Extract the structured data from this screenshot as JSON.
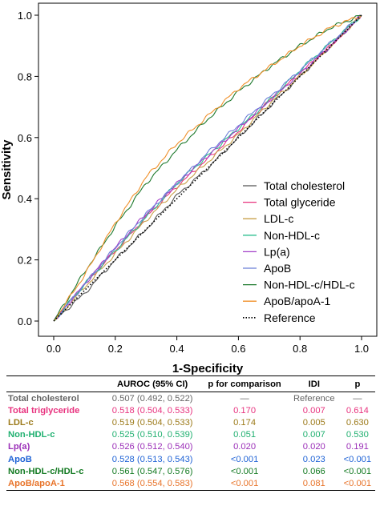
{
  "chart_data": {
    "type": "line",
    "xlabel": "1-Specificity",
    "ylabel": "Sensitivity",
    "xlim": [
      0,
      1
    ],
    "ylim": [
      0,
      1
    ],
    "xticks": [
      "0.0",
      "0.2",
      "0.4",
      "0.6",
      "0.8",
      "1.0"
    ],
    "yticks": [
      "0.0",
      "0.2",
      "0.4",
      "0.6",
      "0.8",
      "1.0"
    ],
    "grid": false,
    "legend_position": "bottom-right",
    "series": [
      {
        "name": "Total cholesterol",
        "color": "#555555",
        "dash": "solid",
        "x": [
          0,
          0.1,
          0.2,
          0.3,
          0.4,
          0.5,
          0.6,
          0.7,
          0.8,
          0.9,
          1
        ],
        "y": [
          0,
          0.09,
          0.2,
          0.3,
          0.41,
          0.5,
          0.6,
          0.7,
          0.8,
          0.9,
          1
        ]
      },
      {
        "name": "Total glyceride",
        "color": "#e8337f",
        "dash": "solid",
        "x": [
          0,
          0.1,
          0.2,
          0.3,
          0.4,
          0.5,
          0.6,
          0.7,
          0.8,
          0.9,
          1
        ],
        "y": [
          0,
          0.12,
          0.23,
          0.34,
          0.44,
          0.53,
          0.62,
          0.72,
          0.81,
          0.9,
          1
        ]
      },
      {
        "name": "LDL-c",
        "color": "#c8a04a",
        "dash": "solid",
        "x": [
          0,
          0.1,
          0.2,
          0.3,
          0.4,
          0.5,
          0.6,
          0.7,
          0.8,
          0.9,
          1
        ],
        "y": [
          0,
          0.11,
          0.22,
          0.33,
          0.43,
          0.52,
          0.61,
          0.71,
          0.8,
          0.9,
          1
        ]
      },
      {
        "name": "Non-HDL-c",
        "color": "#2bbf8f",
        "dash": "solid",
        "x": [
          0,
          0.1,
          0.2,
          0.3,
          0.4,
          0.5,
          0.6,
          0.7,
          0.8,
          0.9,
          1
        ],
        "y": [
          0,
          0.12,
          0.23,
          0.34,
          0.45,
          0.54,
          0.63,
          0.72,
          0.82,
          0.91,
          1
        ]
      },
      {
        "name": "Lp(a)",
        "color": "#a23fc8",
        "dash": "solid",
        "x": [
          0,
          0.1,
          0.2,
          0.3,
          0.4,
          0.5,
          0.6,
          0.7,
          0.8,
          0.9,
          1
        ],
        "y": [
          0,
          0.12,
          0.24,
          0.35,
          0.45,
          0.54,
          0.63,
          0.72,
          0.81,
          0.9,
          1
        ]
      },
      {
        "name": "ApoB",
        "color": "#6b7fd8",
        "dash": "solid",
        "x": [
          0,
          0.1,
          0.2,
          0.3,
          0.4,
          0.5,
          0.6,
          0.7,
          0.8,
          0.9,
          1
        ],
        "y": [
          0,
          0.12,
          0.24,
          0.35,
          0.45,
          0.55,
          0.64,
          0.73,
          0.82,
          0.91,
          1
        ]
      },
      {
        "name": "Non-HDL-c/HDL-c",
        "color": "#1f7a2e",
        "dash": "solid",
        "x": [
          0,
          0.1,
          0.2,
          0.3,
          0.4,
          0.5,
          0.6,
          0.7,
          0.8,
          0.9,
          1
        ],
        "y": [
          0,
          0.16,
          0.31,
          0.45,
          0.56,
          0.66,
          0.75,
          0.83,
          0.9,
          0.96,
          1
        ]
      },
      {
        "name": "ApoB/apoA-1",
        "color": "#f0902a",
        "dash": "solid",
        "x": [
          0,
          0.1,
          0.2,
          0.3,
          0.4,
          0.5,
          0.6,
          0.7,
          0.8,
          0.9,
          1
        ],
        "y": [
          0,
          0.15,
          0.32,
          0.47,
          0.58,
          0.67,
          0.76,
          0.83,
          0.9,
          0.96,
          1
        ]
      },
      {
        "name": "Reference",
        "color": "#000000",
        "dash": "dotted",
        "x": [
          0,
          1
        ],
        "y": [
          0,
          1
        ]
      }
    ]
  },
  "table": {
    "headers": [
      "",
      "AUROC (95% CI)",
      "p for comparison",
      "IDI",
      "p"
    ],
    "rows": [
      {
        "label": "Total cholesterol",
        "color": "#666666",
        "cells": [
          "0.507 (0.492, 0.522)",
          "—",
          "Reference",
          "—"
        ]
      },
      {
        "label": "Total triglyceride",
        "color": "#e8337f",
        "cells": [
          "0.518 (0.504, 0.533)",
          "0.170",
          "0.007",
          "0.614"
        ]
      },
      {
        "label": "LDL-c",
        "color": "#9c7a1a",
        "cells": [
          "0.519 (0.504, 0.533)",
          "0.174",
          "0.005",
          "0.630"
        ]
      },
      {
        "label": "Non-HDL-c",
        "color": "#20b070",
        "cells": [
          "0.525 (0.510, 0.539)",
          "0.051",
          "0.007",
          "0.530"
        ]
      },
      {
        "label": "Lp(a)",
        "color": "#9b2fb8",
        "cells": [
          "0.526 (0.512, 0.540)",
          "0.020",
          "0.020",
          "0.191"
        ]
      },
      {
        "label": "ApoB",
        "color": "#1f63d6",
        "cells": [
          "0.528 (0.513, 0.543)",
          "<0.001",
          "0.023",
          "<0.001"
        ]
      },
      {
        "label": "Non-HDL-c/HDL-c",
        "color": "#137a22",
        "cells": [
          "0.561 (0.547, 0.576)",
          "<0.001",
          "0.066",
          "<0.001"
        ]
      },
      {
        "label": "ApoB/apoA-1",
        "color": "#e8742a",
        "cells": [
          "0.568 (0.554, 0.583)",
          "<0.001",
          "0.081",
          "<0.001"
        ]
      }
    ]
  }
}
